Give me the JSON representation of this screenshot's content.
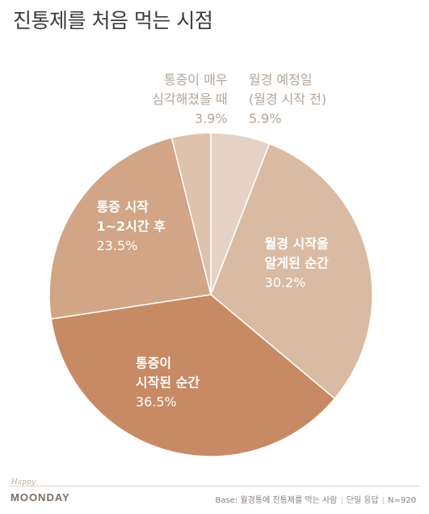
{
  "title": "진통제를 처음 먹는 시점",
  "footer": {
    "logo_script": "Happy",
    "logo": "MOONDAY",
    "base_label": "Base: 월경통에 진통제를 먹는 사람",
    "response_type": "단일 응답",
    "sample_size": "N=920"
  },
  "chart_data": {
    "type": "pie",
    "title": "진통제를 처음 먹는 시점",
    "start_angle_deg": 0,
    "direction": "clockwise",
    "slices": [
      {
        "label": [
          "월경 예정일",
          "(월경 시작 전)"
        ],
        "value": 5.9,
        "value_label": "5.9%",
        "color": "#e5d2c4",
        "label_color": "#b3a69b"
      },
      {
        "label": [
          "월경 시작을",
          "알게된 순간"
        ],
        "value": 30.2,
        "value_label": "30.2%",
        "color": "#d9bba3",
        "label_color": "#ffffff"
      },
      {
        "label": [
          "통증이",
          "시작된 순간"
        ],
        "value": 36.5,
        "value_label": "36.5%",
        "color": "#c78a65",
        "label_color": "#ffffff"
      },
      {
        "label": [
          "통증 시작",
          "1~2시간 후"
        ],
        "value": 23.5,
        "value_label": "23.5%",
        "color": "#d1a586",
        "label_color": "#ffffff"
      },
      {
        "label": [
          "통증이 매우",
          "심각해졌을 때"
        ],
        "value": 3.9,
        "value_label": "3.9%",
        "color": "#dfc2ac",
        "label_color": "#b3a69b"
      }
    ]
  }
}
